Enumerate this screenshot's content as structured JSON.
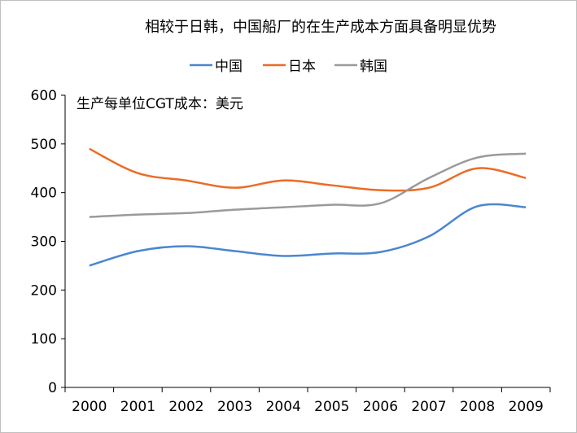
{
  "chart_data": {
    "type": "line",
    "title": "相较于日韩，中国船厂的在生产成本方面具备明显优势",
    "annotation": "生产每单位CGT成本：美元",
    "xlabel": "",
    "ylabel": "",
    "categories": [
      "2000",
      "2001",
      "2002",
      "2003",
      "2004",
      "2005",
      "2006",
      "2007",
      "2008",
      "2009"
    ],
    "ylim": [
      0,
      600
    ],
    "yticks": [
      "0",
      "100",
      "200",
      "300",
      "400",
      "500",
      "600"
    ],
    "grid": false,
    "smooth": true,
    "legend_position": "top",
    "series": [
      {
        "name": "中国",
        "color": "#4a86d0",
        "values": [
          250,
          280,
          290,
          280,
          270,
          275,
          278,
          310,
          372,
          370
        ]
      },
      {
        "name": "日本",
        "color": "#ed6b25",
        "values": [
          490,
          440,
          425,
          410,
          425,
          415,
          405,
          410,
          450,
          430
        ]
      },
      {
        "name": "韩国",
        "color": "#9a9a9a",
        "values": [
          350,
          355,
          358,
          365,
          370,
          375,
          378,
          430,
          472,
          480
        ]
      }
    ]
  }
}
